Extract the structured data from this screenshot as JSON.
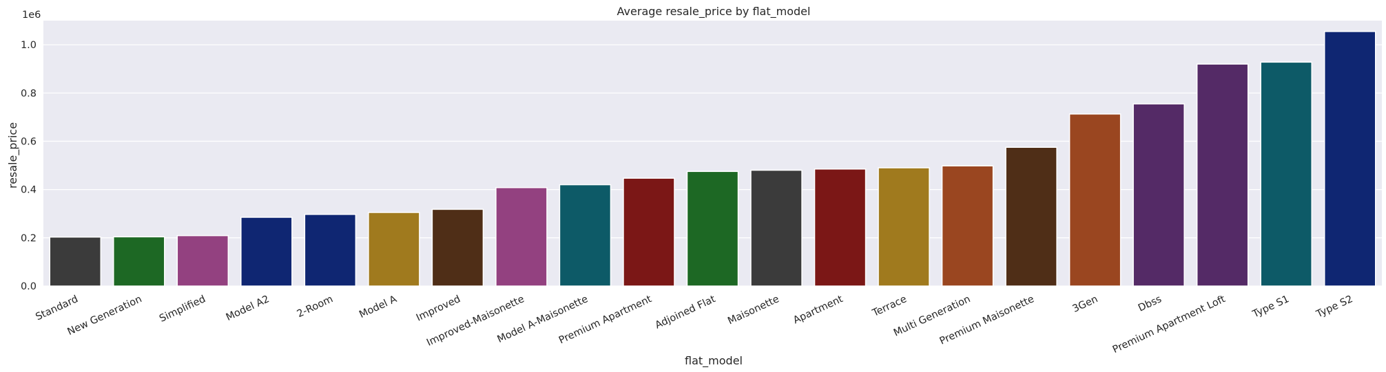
{
  "chart_data": {
    "type": "bar",
    "title": "Average resale_price by flat_model",
    "xlabel": "flat_model",
    "ylabel": "resale_price",
    "y_offset_label": "1e6",
    "ylim": [
      0,
      1.1
    ],
    "yticks": [
      0.0,
      0.2,
      0.4,
      0.6,
      0.8,
      1.0
    ],
    "ytick_labels": [
      "0.0",
      "0.2",
      "0.4",
      "0.6",
      "0.8",
      "1.0"
    ],
    "grid": true,
    "categories": [
      "Standard",
      "New Generation",
      "Simplified",
      "Model A2",
      "2-Room",
      "Model A",
      "Improved",
      "Improved-Maisonette",
      "Model A-Maisonette",
      "Premium Apartment",
      "Adjoined Flat",
      "Maisonette",
      "Apartment",
      "Terrace",
      "Multi Generation",
      "Premium Maisonette",
      "3Gen",
      "Dbss",
      "Premium Apartment Loft",
      "Type S1",
      "Type S2"
    ],
    "values": [
      0.203,
      0.204,
      0.209,
      0.285,
      0.297,
      0.305,
      0.318,
      0.408,
      0.42,
      0.447,
      0.475,
      0.48,
      0.485,
      0.49,
      0.498,
      0.575,
      0.713,
      0.755,
      0.92,
      0.928,
      1.055
    ],
    "colors": [
      "#3b3b3b",
      "#1d6824",
      "#934180",
      "#0f2672",
      "#0f2672",
      "#a07a1e",
      "#4f2e17",
      "#934180",
      "#0d5a67",
      "#7b1716",
      "#1d6824",
      "#3b3b3b",
      "#7b1716",
      "#a07a1e",
      "#9a4620",
      "#4f2e17",
      "#9a4620",
      "#542a66",
      "#542a66",
      "#0d5a67",
      "#0f2672"
    ],
    "background": "#eaeaf2"
  }
}
